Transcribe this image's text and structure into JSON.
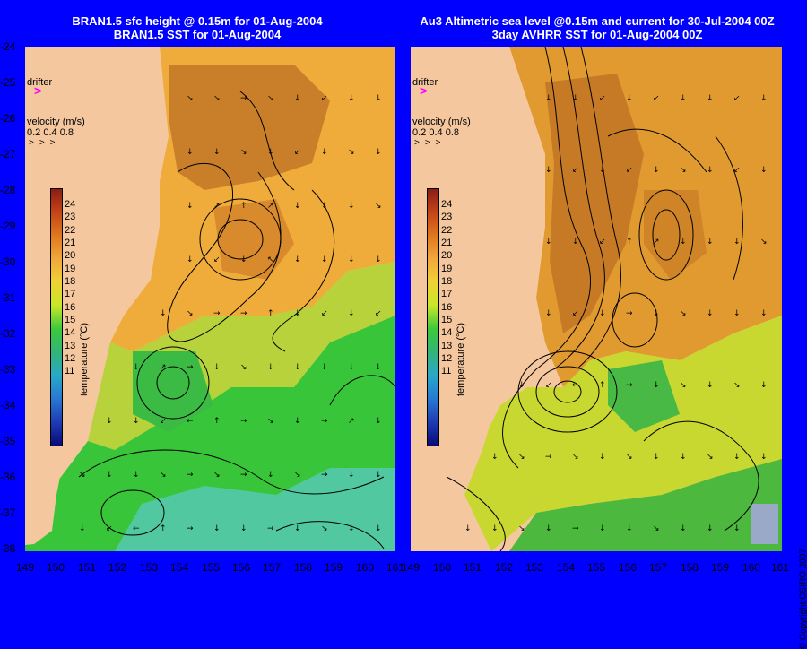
{
  "left_panel": {
    "title_line1": "BRAN1.5 sfc height @ 0.15m for 01-Aug-2004",
    "title_line2": "BRAN1.5 SST for 01-Aug-2004"
  },
  "right_panel": {
    "title_line1": "Au3 Altimetric sea level  @0.15m and current for 30-Jul-2004 00Z",
    "title_line2": "3day AVHRR SST for 01-Aug-2004 00Z"
  },
  "legend": {
    "drifter_label": "drifter",
    "drifter_marker": ">",
    "velocity_label": "velocity (m/s)",
    "velocity_scale": "0.2 0.4 0.8",
    "colorbar_label": "temperature (°C)",
    "colorbar_ticks": [
      "24",
      "23",
      "22",
      "21",
      "20",
      "19",
      "18",
      "17",
      "16",
      "15",
      "14",
      "13",
      "12",
      "11"
    ]
  },
  "axes": {
    "y_ticks": [
      "-24",
      "-25",
      "-26",
      "-27",
      "-28",
      "-29",
      "-30",
      "-31",
      "-32",
      "-33",
      "-34",
      "-35",
      "-36",
      "-37",
      "-38"
    ],
    "x_ticks_left": [
      "149",
      "150",
      "151",
      "152",
      "153",
      "154",
      "155",
      "156",
      "157",
      "158",
      "159",
      "160",
      "161"
    ],
    "x_ticks_right": [
      "149",
      "150",
      "151",
      "152",
      "153",
      "154",
      "155",
      "156",
      "157",
      "158",
      "159",
      "160",
      "161"
    ]
  },
  "copyright": "© Copyright CSIRO 2007",
  "colors": {
    "background": "#0000ff",
    "land": "#f4c79f",
    "warm": "#c8781e",
    "mid": "#f0b43c",
    "cool": "#28c828",
    "cold": "#46c8a0",
    "drifter": "#ff00ff"
  }
}
